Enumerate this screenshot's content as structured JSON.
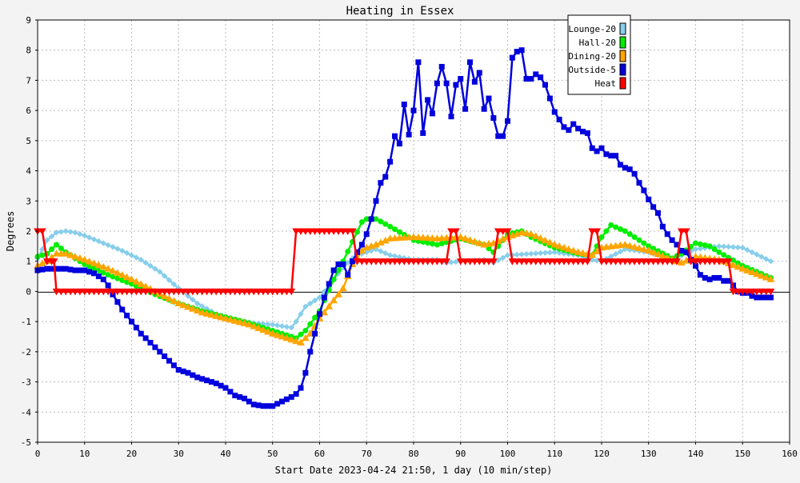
{
  "chart_data": {
    "type": "line",
    "title": "Heating in Essex",
    "xlabel": "Start Date 2023-04-24 21:50, 1 day (10 min/step)",
    "ylabel": "Degrees",
    "xlim": [
      0,
      160
    ],
    "ylim": [
      -5,
      9
    ],
    "xticks": [
      0,
      10,
      20,
      30,
      40,
      50,
      60,
      70,
      80,
      90,
      100,
      110,
      120,
      130,
      140,
      150,
      160
    ],
    "yticks": [
      -5,
      -4,
      -3,
      -2,
      -1,
      0,
      1,
      2,
      3,
      4,
      5,
      6,
      7,
      8,
      9
    ],
    "grid": true,
    "legend_position": "top-right",
    "series": [
      {
        "name": "Lounge-20",
        "color": "#87ceeb",
        "marker": "diamond",
        "x": [
          0,
          2,
          4,
          6,
          8,
          10,
          14,
          18,
          22,
          26,
          30,
          34,
          38,
          42,
          46,
          50,
          54,
          55,
          57,
          60,
          63,
          65,
          67,
          68,
          70,
          72,
          75,
          80,
          85,
          87,
          90,
          95,
          97,
          100,
          105,
          110,
          115,
          118,
          120,
          125,
          130,
          135,
          140,
          145,
          150,
          156
        ],
        "y": [
          1.1,
          1.7,
          1.95,
          2.0,
          1.95,
          1.85,
          1.6,
          1.35,
          1.05,
          0.65,
          0.1,
          -0.4,
          -0.75,
          -0.95,
          -1.05,
          -1.1,
          -1.2,
          -1.0,
          -0.5,
          -0.2,
          0.4,
          0.8,
          1.1,
          1.2,
          1.3,
          1.4,
          1.2,
          1.05,
          1.05,
          0.95,
          1.0,
          1.05,
          0.95,
          1.2,
          1.25,
          1.3,
          1.2,
          1.05,
          1.0,
          1.4,
          1.3,
          1.05,
          1.4,
          1.5,
          1.45,
          1.0
        ]
      },
      {
        "name": "Hall-20",
        "color": "#00ee00",
        "marker": "circle",
        "x": [
          0,
          2,
          4,
          6,
          10,
          15,
          20,
          25,
          30,
          35,
          40,
          45,
          50,
          54,
          55,
          57,
          60,
          63,
          65,
          67,
          69,
          70,
          72,
          75,
          80,
          85,
          90,
          95,
          97,
          100,
          103,
          105,
          110,
          115,
          118,
          120,
          122,
          125,
          130,
          135,
          137,
          140,
          143,
          145,
          150,
          156
        ],
        "y": [
          1.15,
          1.25,
          1.55,
          1.3,
          0.9,
          0.55,
          0.25,
          -0.1,
          -0.4,
          -0.65,
          -0.85,
          -1.05,
          -1.3,
          -1.5,
          -1.55,
          -1.3,
          -0.65,
          0.4,
          1.0,
          1.65,
          2.3,
          2.4,
          2.4,
          2.15,
          1.7,
          1.55,
          1.75,
          1.55,
          1.3,
          1.9,
          2.0,
          1.8,
          1.45,
          1.25,
          1.2,
          1.8,
          2.2,
          2.0,
          1.5,
          1.1,
          1.25,
          1.6,
          1.5,
          1.3,
          0.85,
          0.45
        ]
      },
      {
        "name": "Dining-20",
        "color": "#ffa500",
        "marker": "triangle",
        "x": [
          0,
          2,
          4,
          6,
          10,
          15,
          20,
          25,
          30,
          35,
          40,
          45,
          50,
          54,
          56,
          58,
          60,
          63,
          65,
          67,
          69,
          70,
          72,
          75,
          80,
          85,
          90,
          95,
          97,
          100,
          103,
          105,
          110,
          115,
          118,
          120,
          125,
          130,
          135,
          137,
          140,
          145,
          150,
          156
        ],
        "y": [
          0.85,
          1.0,
          1.25,
          1.25,
          1.05,
          0.75,
          0.4,
          0.0,
          -0.4,
          -0.7,
          -0.9,
          -1.1,
          -1.4,
          -1.6,
          -1.7,
          -1.4,
          -0.9,
          -0.3,
          0.1,
          0.9,
          1.35,
          1.45,
          1.55,
          1.75,
          1.8,
          1.75,
          1.8,
          1.55,
          1.6,
          1.8,
          1.95,
          1.9,
          1.55,
          1.3,
          1.2,
          1.45,
          1.55,
          1.35,
          1.05,
          0.95,
          1.15,
          1.05,
          0.75,
          0.4
        ]
      },
      {
        "name": "Outside-5",
        "color": "#0000dd",
        "marker": "square",
        "x": [
          0,
          2,
          4,
          6,
          8,
          10,
          12,
          14,
          15,
          16,
          18,
          20,
          22,
          24,
          26,
          28,
          30,
          32,
          34,
          36,
          38,
          40,
          42,
          44,
          46,
          48,
          50,
          52,
          54,
          55,
          56,
          57,
          58,
          59,
          60,
          61,
          62,
          63,
          64,
          65,
          66,
          67,
          68,
          69,
          70,
          71,
          72,
          73,
          74,
          75,
          76,
          77,
          78,
          79,
          80,
          81,
          82,
          83,
          84,
          85,
          86,
          87,
          88,
          89,
          90,
          91,
          92,
          93,
          94,
          95,
          96,
          97,
          98,
          99,
          100,
          101,
          102,
          103,
          104,
          105,
          106,
          107,
          108,
          109,
          110,
          111,
          112,
          113,
          114,
          115,
          116,
          117,
          118,
          119,
          120,
          121,
          122,
          123,
          124,
          125,
          126,
          127,
          128,
          129,
          130,
          131,
          132,
          133,
          134,
          135,
          136,
          137,
          138,
          139,
          140,
          141,
          142,
          143,
          144,
          145,
          146,
          147,
          148,
          149,
          150,
          151,
          152,
          153,
          154,
          155,
          156
        ],
        "y": [
          0.7,
          0.75,
          0.75,
          0.75,
          0.7,
          0.7,
          0.6,
          0.4,
          0.2,
          -0.1,
          -0.6,
          -1.0,
          -1.4,
          -1.7,
          -2.0,
          -2.3,
          -2.6,
          -2.7,
          -2.85,
          -2.95,
          -3.05,
          -3.2,
          -3.45,
          -3.55,
          -3.75,
          -3.8,
          -3.8,
          -3.65,
          -3.5,
          -3.4,
          -3.2,
          -2.7,
          -2.0,
          -1.4,
          -0.75,
          -0.2,
          0.25,
          0.7,
          0.9,
          0.9,
          0.55,
          1.0,
          1.3,
          1.55,
          1.9,
          2.4,
          3.0,
          3.6,
          3.8,
          4.3,
          5.15,
          4.9,
          6.2,
          5.2,
          6.0,
          7.6,
          5.25,
          6.35,
          5.9,
          6.9,
          7.45,
          6.9,
          5.8,
          6.85,
          7.05,
          6.05,
          7.6,
          6.95,
          7.25,
          6.05,
          6.4,
          5.75,
          5.15,
          5.15,
          5.65,
          7.75,
          7.95,
          8.0,
          7.05,
          7.05,
          7.2,
          7.1,
          6.85,
          6.4,
          5.95,
          5.7,
          5.45,
          5.35,
          5.55,
          5.4,
          5.3,
          5.25,
          4.75,
          4.65,
          4.75,
          4.55,
          4.5,
          4.5,
          4.2,
          4.1,
          4.05,
          3.9,
          3.6,
          3.35,
          3.05,
          2.8,
          2.6,
          2.15,
          1.9,
          1.7,
          1.55,
          1.35,
          1.3,
          1.05,
          0.85,
          0.55,
          0.45,
          0.4,
          0.45,
          0.45,
          0.35,
          0.35,
          0.2,
          0.0,
          -0.05,
          -0.05,
          -0.15,
          -0.2,
          -0.2,
          -0.2,
          -0.2
        ]
      },
      {
        "name": "Heat",
        "color": "#ff0000",
        "marker": "triangle-down",
        "x": [
          0,
          1,
          2,
          3,
          3.5,
          4,
          54,
          55,
          67,
          68,
          87,
          88,
          89,
          90,
          97,
          98,
          100,
          101,
          117,
          118,
          119,
          120,
          136,
          137,
          138,
          139,
          147,
          148,
          156
        ],
        "y": [
          2,
          2,
          1,
          1,
          1,
          0,
          0,
          2,
          2,
          1,
          1,
          2,
          2,
          1,
          1,
          2,
          2,
          1,
          1,
          2,
          2,
          1,
          1,
          2,
          2,
          1,
          1,
          0,
          0
        ]
      }
    ]
  }
}
